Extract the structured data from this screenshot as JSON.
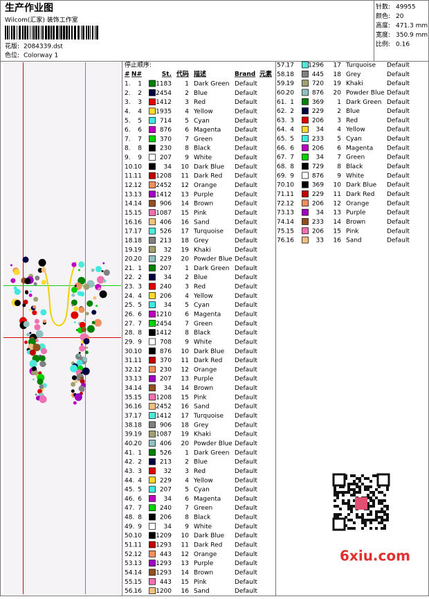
{
  "header": {
    "title": "生产作业图",
    "studio": "Wilcom(汇家) 装饰工作室",
    "design_label": "花版:",
    "design": "2084339.dst",
    "colorway_label": "色位:",
    "colorway": "Colorway 1"
  },
  "info": [
    [
      "针数:",
      "49955"
    ],
    [
      "颜色:",
      "20"
    ],
    [
      "高度:",
      "471.3 mm"
    ],
    [
      "宽度:",
      "350.9 mm"
    ],
    [
      "比例:",
      "0.16"
    ]
  ],
  "stops": {
    "title": "停止顺序:",
    "columns": [
      "#",
      "N#",
      "St.",
      "代码",
      "描述",
      "Brand",
      "元素"
    ],
    "rows": [
      [
        "1.",
        "1",
        "1183",
        "1",
        "Dark Green",
        "Default"
      ],
      [
        "2.",
        "2",
        "2454",
        "2",
        "Blue",
        "Default"
      ],
      [
        "3.",
        "3",
        "1412",
        "3",
        "Red",
        "Default"
      ],
      [
        "4.",
        "4",
        "1935",
        "4",
        "Yellow",
        "Default"
      ],
      [
        "5.",
        "5",
        "714",
        "5",
        "Cyan",
        "Default"
      ],
      [
        "6.",
        "6",
        "876",
        "6",
        "Magenta",
        "Default"
      ],
      [
        "7.",
        "7",
        "370",
        "7",
        "Green",
        "Default"
      ],
      [
        "8.",
        "8",
        "230",
        "8",
        "Black",
        "Default"
      ],
      [
        "9.",
        "9",
        "207",
        "9",
        "White",
        "Default"
      ],
      [
        "10.",
        "10",
        "34",
        "10",
        "Dark Blue",
        "Default"
      ],
      [
        "11.",
        "11",
        "1208",
        "11",
        "Dark Red",
        "Default"
      ],
      [
        "12.",
        "12",
        "2452",
        "12",
        "Orange",
        "Default"
      ],
      [
        "13.",
        "13",
        "1412",
        "13",
        "Purple",
        "Default"
      ],
      [
        "14.",
        "14",
        "906",
        "14",
        "Brown",
        "Default"
      ],
      [
        "15.",
        "15",
        "1087",
        "15",
        "Pink",
        "Default"
      ],
      [
        "16.",
        "16",
        "406",
        "16",
        "Sand",
        "Default"
      ],
      [
        "17.",
        "17",
        "526",
        "17",
        "Turquoise",
        "Default"
      ],
      [
        "18.",
        "18",
        "213",
        "18",
        "Grey",
        "Default"
      ],
      [
        "19.",
        "19",
        "32",
        "19",
        "Khaki",
        "Default"
      ],
      [
        "20.",
        "20",
        "229",
        "20",
        "Powder Blue",
        "Default"
      ],
      [
        "21.",
        "1",
        "207",
        "1",
        "Dark Green",
        "Default"
      ],
      [
        "22.",
        "2",
        "34",
        "2",
        "Blue",
        "Default"
      ],
      [
        "23.",
        "3",
        "240",
        "3",
        "Red",
        "Default"
      ],
      [
        "24.",
        "4",
        "206",
        "4",
        "Yellow",
        "Default"
      ],
      [
        "25.",
        "5",
        "34",
        "5",
        "Cyan",
        "Default"
      ],
      [
        "26.",
        "6",
        "1210",
        "6",
        "Magenta",
        "Default"
      ],
      [
        "27.",
        "7",
        "2454",
        "7",
        "Green",
        "Default"
      ],
      [
        "28.",
        "8",
        "1412",
        "8",
        "Black",
        "Default"
      ],
      [
        "29.",
        "9",
        "708",
        "9",
        "White",
        "Default"
      ],
      [
        "30.",
        "10",
        "876",
        "10",
        "Dark Blue",
        "Default"
      ],
      [
        "31.",
        "11",
        "370",
        "11",
        "Dark Red",
        "Default"
      ],
      [
        "32.",
        "12",
        "230",
        "12",
        "Orange",
        "Default"
      ],
      [
        "33.",
        "13",
        "207",
        "13",
        "Purple",
        "Default"
      ],
      [
        "34.",
        "14",
        "34",
        "14",
        "Brown",
        "Default"
      ],
      [
        "35.",
        "15",
        "1208",
        "15",
        "Pink",
        "Default"
      ],
      [
        "36.",
        "16",
        "2452",
        "16",
        "Sand",
        "Default"
      ],
      [
        "37.",
        "17",
        "1412",
        "17",
        "Turquoise",
        "Default"
      ],
      [
        "38.",
        "18",
        "906",
        "18",
        "Grey",
        "Default"
      ],
      [
        "39.",
        "19",
        "1087",
        "19",
        "Khaki",
        "Default"
      ],
      [
        "40.",
        "20",
        "406",
        "20",
        "Powder Blue",
        "Default"
      ],
      [
        "41.",
        "1",
        "526",
        "1",
        "Dark Green",
        "Default"
      ],
      [
        "42.",
        "2",
        "213",
        "2",
        "Blue",
        "Default"
      ],
      [
        "43.",
        "3",
        "32",
        "3",
        "Red",
        "Default"
      ],
      [
        "44.",
        "4",
        "229",
        "4",
        "Yellow",
        "Default"
      ],
      [
        "45.",
        "5",
        "207",
        "5",
        "Cyan",
        "Default"
      ],
      [
        "46.",
        "6",
        "34",
        "6",
        "Magenta",
        "Default"
      ],
      [
        "47.",
        "7",
        "240",
        "7",
        "Green",
        "Default"
      ],
      [
        "48.",
        "8",
        "206",
        "8",
        "Black",
        "Default"
      ],
      [
        "49.",
        "9",
        "34",
        "9",
        "White",
        "Default"
      ],
      [
        "50.",
        "10",
        "1209",
        "10",
        "Dark Blue",
        "Default"
      ],
      [
        "51.",
        "11",
        "1293",
        "11",
        "Dark Red",
        "Default"
      ],
      [
        "52.",
        "12",
        "443",
        "12",
        "Orange",
        "Default"
      ],
      [
        "53.",
        "13",
        "1293",
        "13",
        "Purple",
        "Default"
      ],
      [
        "54.",
        "14",
        "1293",
        "14",
        "Brown",
        "Default"
      ],
      [
        "55.",
        "15",
        "443",
        "15",
        "Pink",
        "Default"
      ],
      [
        "56.",
        "16",
        "1200",
        "16",
        "Sand",
        "Default"
      ],
      [
        "57.",
        "17",
        "1296",
        "17",
        "Turquoise",
        "Default"
      ],
      [
        "58.",
        "18",
        "445",
        "18",
        "Grey",
        "Default"
      ],
      [
        "59.",
        "19",
        "720",
        "19",
        "Khaki",
        "Default"
      ],
      [
        "60.",
        "20",
        "876",
        "20",
        "Powder Blue",
        "Default"
      ],
      [
        "61.",
        "1",
        "369",
        "1",
        "Dark Green",
        "Default"
      ],
      [
        "62.",
        "2",
        "229",
        "2",
        "Blue",
        "Default"
      ],
      [
        "63.",
        "3",
        "206",
        "3",
        "Red",
        "Default"
      ],
      [
        "64.",
        "4",
        "34",
        "4",
        "Yellow",
        "Default"
      ],
      [
        "65.",
        "5",
        "233",
        "5",
        "Cyan",
        "Default"
      ],
      [
        "66.",
        "6",
        "206",
        "6",
        "Magenta",
        "Default"
      ],
      [
        "67.",
        "7",
        "34",
        "7",
        "Green",
        "Default"
      ],
      [
        "68.",
        "8",
        "729",
        "8",
        "Black",
        "Default"
      ],
      [
        "69.",
        "9",
        "876",
        "9",
        "White",
        "Default"
      ],
      [
        "70.",
        "10",
        "369",
        "10",
        "Dark Blue",
        "Default"
      ],
      [
        "71.",
        "11",
        "229",
        "11",
        "Dark Red",
        "Default"
      ],
      [
        "72.",
        "12",
        "206",
        "12",
        "Orange",
        "Default"
      ],
      [
        "73.",
        "13",
        "34",
        "13",
        "Purple",
        "Default"
      ],
      [
        "74.",
        "14",
        "233",
        "14",
        "Brown",
        "Default"
      ],
      [
        "75.",
        "15",
        "206",
        "15",
        "Pink",
        "Default"
      ],
      [
        "76.",
        "16",
        "33",
        "16",
        "Sand",
        "Default"
      ]
    ]
  },
  "watermark": "6xiu.com"
}
